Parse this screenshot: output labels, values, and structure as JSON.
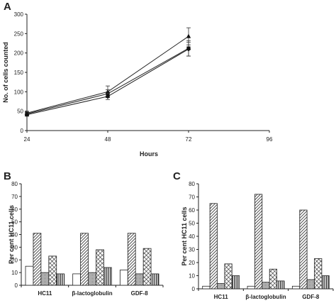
{
  "panels": {
    "A": "A",
    "B": "B",
    "C": "C"
  },
  "chart_data": [
    {
      "type": "line",
      "panel": "A",
      "xlabel": "Hours",
      "ylabel": "No. of cells counted",
      "x": [
        24,
        48,
        72
      ],
      "x_ticks": [
        24,
        48,
        72,
        96
      ],
      "xlim": [
        24,
        96
      ],
      "y_ticks": [
        0,
        50,
        100,
        150,
        200,
        250,
        300
      ],
      "ylim": [
        0,
        300
      ],
      "series": [
        {
          "marker": "triangle",
          "values": [
            45,
            100,
            243
          ],
          "errors": [
            5,
            15,
            22
          ]
        },
        {
          "marker": "square",
          "values": [
            43,
            95,
            212
          ],
          "errors": [
            5,
            10,
            20
          ]
        },
        {
          "marker": "diamond",
          "values": [
            41,
            88,
            210
          ],
          "errors": [
            4,
            8,
            18
          ]
        }
      ]
    },
    {
      "type": "bar",
      "panel": "B",
      "ylabel": "Per cent HC11 cells",
      "y_ticks": [
        0,
        10,
        20,
        30,
        40,
        50,
        60,
        70,
        80
      ],
      "ylim": [
        0,
        80
      ],
      "categories": [
        "HC11",
        "β-lactoglobulin",
        "GDF-8"
      ],
      "series": [
        {
          "pattern": "white",
          "values": [
            15,
            9,
            12
          ]
        },
        {
          "pattern": "diag",
          "values": [
            41,
            41,
            41
          ]
        },
        {
          "pattern": "dots",
          "values": [
            10,
            10,
            9
          ]
        },
        {
          "pattern": "cross",
          "values": [
            23,
            28,
            29
          ]
        },
        {
          "pattern": "vert",
          "values": [
            9,
            14,
            9
          ]
        }
      ]
    },
    {
      "type": "bar",
      "panel": "C",
      "ylabel": "Per cent HC11 cells",
      "y_ticks": [
        0,
        10,
        20,
        30,
        40,
        50,
        60,
        70,
        80
      ],
      "ylim": [
        0,
        80
      ],
      "categories": [
        "HC11",
        "β-lactoglobulin",
        "GDF-8"
      ],
      "series": [
        {
          "pattern": "white",
          "values": [
            2,
            2,
            2
          ]
        },
        {
          "pattern": "diag",
          "values": [
            65,
            72,
            60
          ]
        },
        {
          "pattern": "dots",
          "values": [
            4,
            5,
            7
          ]
        },
        {
          "pattern": "cross",
          "values": [
            19,
            15,
            23
          ]
        },
        {
          "pattern": "vert",
          "values": [
            10,
            6,
            10
          ]
        }
      ]
    }
  ]
}
